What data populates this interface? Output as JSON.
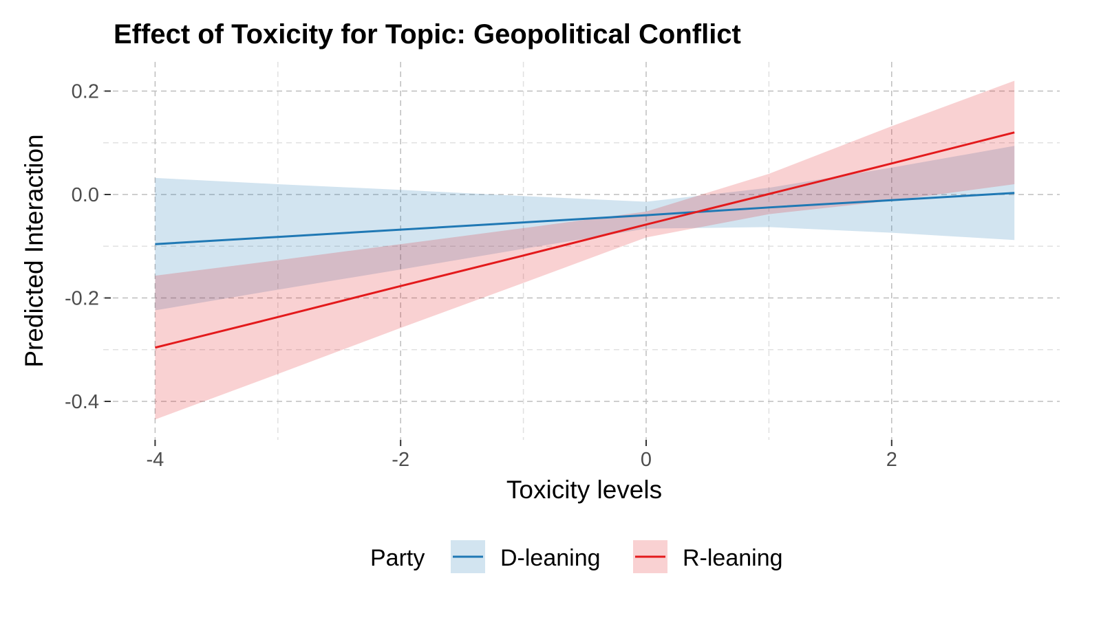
{
  "chart_data": {
    "type": "line",
    "title": "Effect of Toxicity for Topic: Geopolitical Conflict",
    "xlabel": "Toxicity levels",
    "ylabel": "Predicted Interaction",
    "xlim": [
      -4.4,
      3.4
    ],
    "ylim": [
      -0.47,
      0.26
    ],
    "x_ticks": [
      -4,
      -2,
      0,
      2
    ],
    "x_tick_labels": [
      "-4",
      "-2",
      "0",
      "2"
    ],
    "x_minor": [
      -3,
      -1,
      1
    ],
    "y_ticks": [
      0.2,
      0.0,
      -0.2,
      -0.4
    ],
    "y_tick_labels": [
      "0.2",
      "0.0",
      "-0.2",
      "-0.4"
    ],
    "y_minor": [
      0.1,
      -0.1,
      -0.3
    ],
    "grid": true,
    "legend": {
      "title": "Party",
      "placement": "bottom"
    },
    "x": [
      -4,
      -3,
      -2,
      -1,
      0,
      1,
      2,
      3
    ],
    "series": [
      {
        "name": "D-leaning",
        "color": "#1f78b4",
        "fill": "#1f78b4",
        "values": [
          -0.096,
          -0.082,
          -0.068,
          -0.054,
          -0.04,
          -0.025,
          -0.011,
          0.003
        ],
        "lower": [
          -0.224,
          -0.184,
          -0.145,
          -0.105,
          -0.066,
          -0.063,
          -0.074,
          -0.088
        ],
        "upper": [
          0.032,
          0.02,
          0.009,
          -0.003,
          -0.014,
          0.013,
          0.052,
          0.094
        ]
      },
      {
        "name": "R-leaning",
        "color": "#e31a1c",
        "fill": "#e31a1c",
        "values": [
          -0.296,
          -0.237,
          -0.177,
          -0.118,
          -0.058,
          0.001,
          0.06,
          0.12
        ],
        "lower": [
          -0.435,
          -0.347,
          -0.258,
          -0.171,
          -0.083,
          -0.038,
          -0.012,
          0.02
        ],
        "upper": [
          -0.157,
          -0.127,
          -0.096,
          -0.065,
          -0.033,
          0.04,
          0.132,
          0.22
        ]
      }
    ]
  }
}
